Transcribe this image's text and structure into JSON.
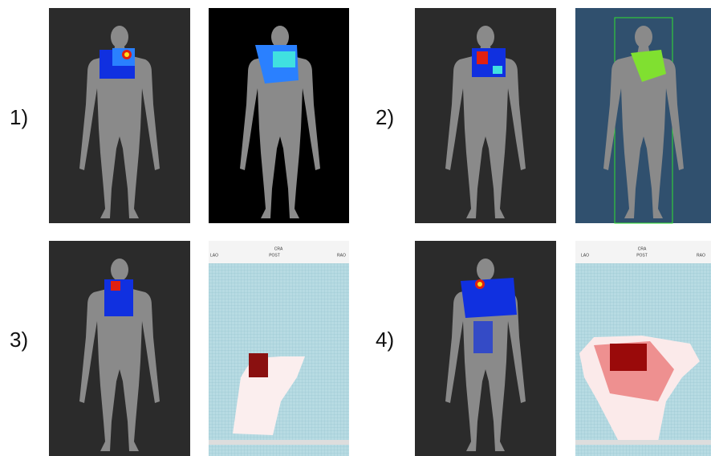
{
  "figure_labels": [
    "1)",
    "2)",
    "3)",
    "4)"
  ],
  "grid_panels": [
    {
      "title": "CRA",
      "left": "LAO",
      "center": "POST",
      "right": "RAO"
    },
    {
      "title": "CRA",
      "left": "LAO",
      "center": "POST",
      "right": "RAO"
    }
  ]
}
